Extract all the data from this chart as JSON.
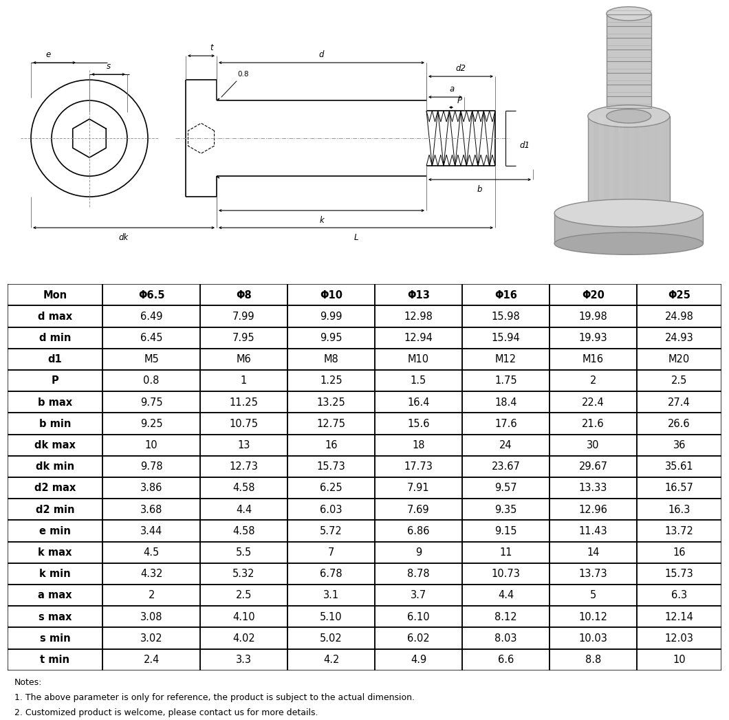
{
  "table_headers": [
    "Mon",
    "Φ6.5",
    "Φ8",
    "Φ10",
    "Φ13",
    "Φ16",
    "Φ20",
    "Φ25"
  ],
  "table_rows": [
    [
      "d max",
      "6.49",
      "7.99",
      "9.99",
      "12.98",
      "15.98",
      "19.98",
      "24.98"
    ],
    [
      "d min",
      "6.45",
      "7.95",
      "9.95",
      "12.94",
      "15.94",
      "19.93",
      "24.93"
    ],
    [
      "d1",
      "M5",
      "M6",
      "M8",
      "M10",
      "M12",
      "M16",
      "M20"
    ],
    [
      "P",
      "0.8",
      "1",
      "1.25",
      "1.5",
      "1.75",
      "2",
      "2.5"
    ],
    [
      "b max",
      "9.75",
      "11.25",
      "13.25",
      "16.4",
      "18.4",
      "22.4",
      "27.4"
    ],
    [
      "b min",
      "9.25",
      "10.75",
      "12.75",
      "15.6",
      "17.6",
      "21.6",
      "26.6"
    ],
    [
      "dk max",
      "10",
      "13",
      "16",
      "18",
      "24",
      "30",
      "36"
    ],
    [
      "dk min",
      "9.78",
      "12.73",
      "15.73",
      "17.73",
      "23.67",
      "29.67",
      "35.61"
    ],
    [
      "d2 max",
      "3.86",
      "4.58",
      "6.25",
      "7.91",
      "9.57",
      "13.33",
      "16.57"
    ],
    [
      "d2 min",
      "3.68",
      "4.4",
      "6.03",
      "7.69",
      "9.35",
      "12.96",
      "16.3"
    ],
    [
      "e min",
      "3.44",
      "4.58",
      "5.72",
      "6.86",
      "9.15",
      "11.43",
      "13.72"
    ],
    [
      "k max",
      "4.5",
      "5.5",
      "7",
      "9",
      "11",
      "14",
      "16"
    ],
    [
      "k min",
      "4.32",
      "5.32",
      "6.78",
      "8.78",
      "10.73",
      "13.73",
      "15.73"
    ],
    [
      "a max",
      "2",
      "2.5",
      "3.1",
      "3.7",
      "4.4",
      "5",
      "6.3"
    ],
    [
      "s max",
      "3.08",
      "4.10",
      "5.10",
      "6.10",
      "8.12",
      "10.12",
      "12.14"
    ],
    [
      "s min",
      "3.02",
      "4.02",
      "5.02",
      "6.02",
      "8.03",
      "10.03",
      "12.03"
    ],
    [
      "t min",
      "2.4",
      "3.3",
      "4.2",
      "4.9",
      "6.6",
      "8.8",
      "10"
    ]
  ],
  "notes": [
    "Notes:",
    "1. The above parameter is only for reference, the product is subject to the actual dimension.",
    "2. Customized product is welcome, please contact us for more details."
  ]
}
